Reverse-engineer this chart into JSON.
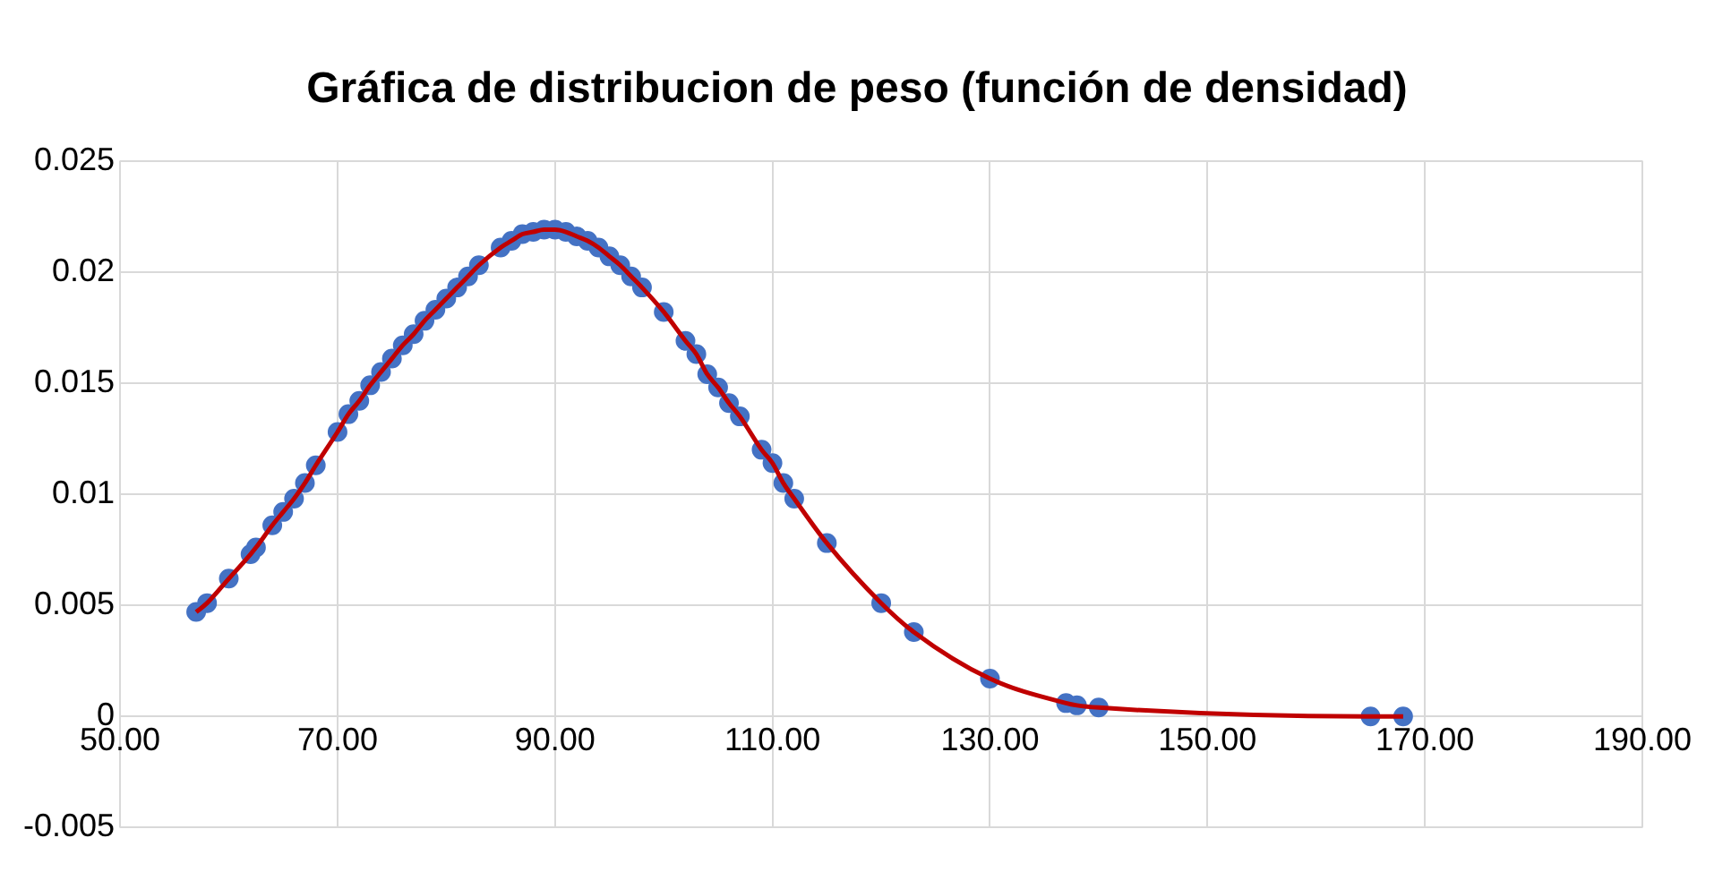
{
  "chart_data": {
    "type": "line",
    "title": "Gráfica de distribucion de peso (función de densidad)",
    "x": [
      57,
      58,
      60,
      62,
      62.5,
      64,
      65,
      66,
      67,
      68,
      70,
      71,
      72,
      73,
      74,
      75,
      76,
      77,
      78,
      79,
      80,
      81,
      82,
      83,
      85,
      86,
      87,
      88,
      89,
      90,
      91,
      92,
      93,
      94,
      95,
      96,
      97,
      98,
      100,
      102,
      103,
      104,
      105,
      106,
      107,
      109,
      110,
      111,
      112,
      115,
      120,
      123,
      130,
      137,
      138,
      140,
      165,
      168
    ],
    "series": [
      {
        "color": "#c00000",
        "colors": [
          "#4472c4",
          "#4472c4",
          "#4472c4",
          "#4472c4",
          "#4472c4",
          "#4472c4",
          "#4472c4",
          "#4472c4",
          "#4472c4",
          "#4472c4",
          "#4472c4",
          "#4472c4",
          "#4472c4",
          "#4472c4",
          "#4472c4",
          "#4472c4",
          "#4472c4",
          "#4472c4",
          "#4472c4",
          "#4472c4",
          "#4472c4",
          "#4472c4",
          "#4472c4",
          "#4472c4",
          "#4472c4",
          "#4472c4",
          "#4472c4",
          "#4472c4",
          "#4472c4",
          "#4472c4",
          "#4472c4",
          "#4472c4",
          "#4472c4",
          "#4472c4",
          "#4472c4",
          "#4472c4",
          "#4472c4",
          "#4472c4",
          "#4472c4",
          "#4472c4",
          "#4472c4",
          "#4472c4",
          "#4472c4",
          "#4472c4",
          "#4472c4",
          "#4472c4",
          "#4472c4",
          "#4472c4",
          "#4472c4",
          "#4472c4",
          "#4472c4",
          "#4472c4",
          "#4472c4",
          "#4472c4",
          "#4472c4",
          "#4472c4",
          "#4472c4",
          "#4472c4"
        ],
        "values": [
          0.0047,
          0.0051,
          0.0062,
          0.0073,
          0.0076,
          0.0086,
          0.0092,
          0.0098,
          0.0105,
          0.0113,
          0.0128,
          0.0136,
          0.0142,
          0.0149,
          0.0155,
          0.0161,
          0.0167,
          0.0172,
          0.0178,
          0.0183,
          0.0188,
          0.0193,
          0.0198,
          0.0203,
          0.0211,
          0.0214,
          0.0217,
          0.0218,
          0.0219,
          0.0219,
          0.0218,
          0.0216,
          0.0214,
          0.0211,
          0.0207,
          0.0203,
          0.0198,
          0.0193,
          0.0182,
          0.0169,
          0.0163,
          0.0154,
          0.0148,
          0.0141,
          0.0135,
          0.012,
          0.0114,
          0.0105,
          0.0098,
          0.0078,
          0.0051,
          0.0038,
          0.0017,
          0.0006,
          0.0005,
          0.0004,
          0,
          0
        ]
      }
    ],
    "xlim": [
      50,
      190
    ],
    "xticks": [
      {
        "value": 50,
        "label": "50.00"
      },
      {
        "value": 70,
        "label": "70.00"
      },
      {
        "value": 90,
        "label": "90.00"
      },
      {
        "value": 110,
        "label": "110.00"
      },
      {
        "value": 130,
        "label": "130.00"
      },
      {
        "value": 150,
        "label": "150.00"
      },
      {
        "value": 170,
        "label": "170.00"
      },
      {
        "value": 190,
        "label": "190.00"
      }
    ],
    "ylim": [
      -0.005,
      0.025
    ],
    "yticks": [
      -0.005,
      0,
      0.005,
      0.01,
      0.015,
      0.02,
      0.025
    ],
    "grid": true,
    "legend": false,
    "marker": "circle",
    "line_style": "solid"
  }
}
